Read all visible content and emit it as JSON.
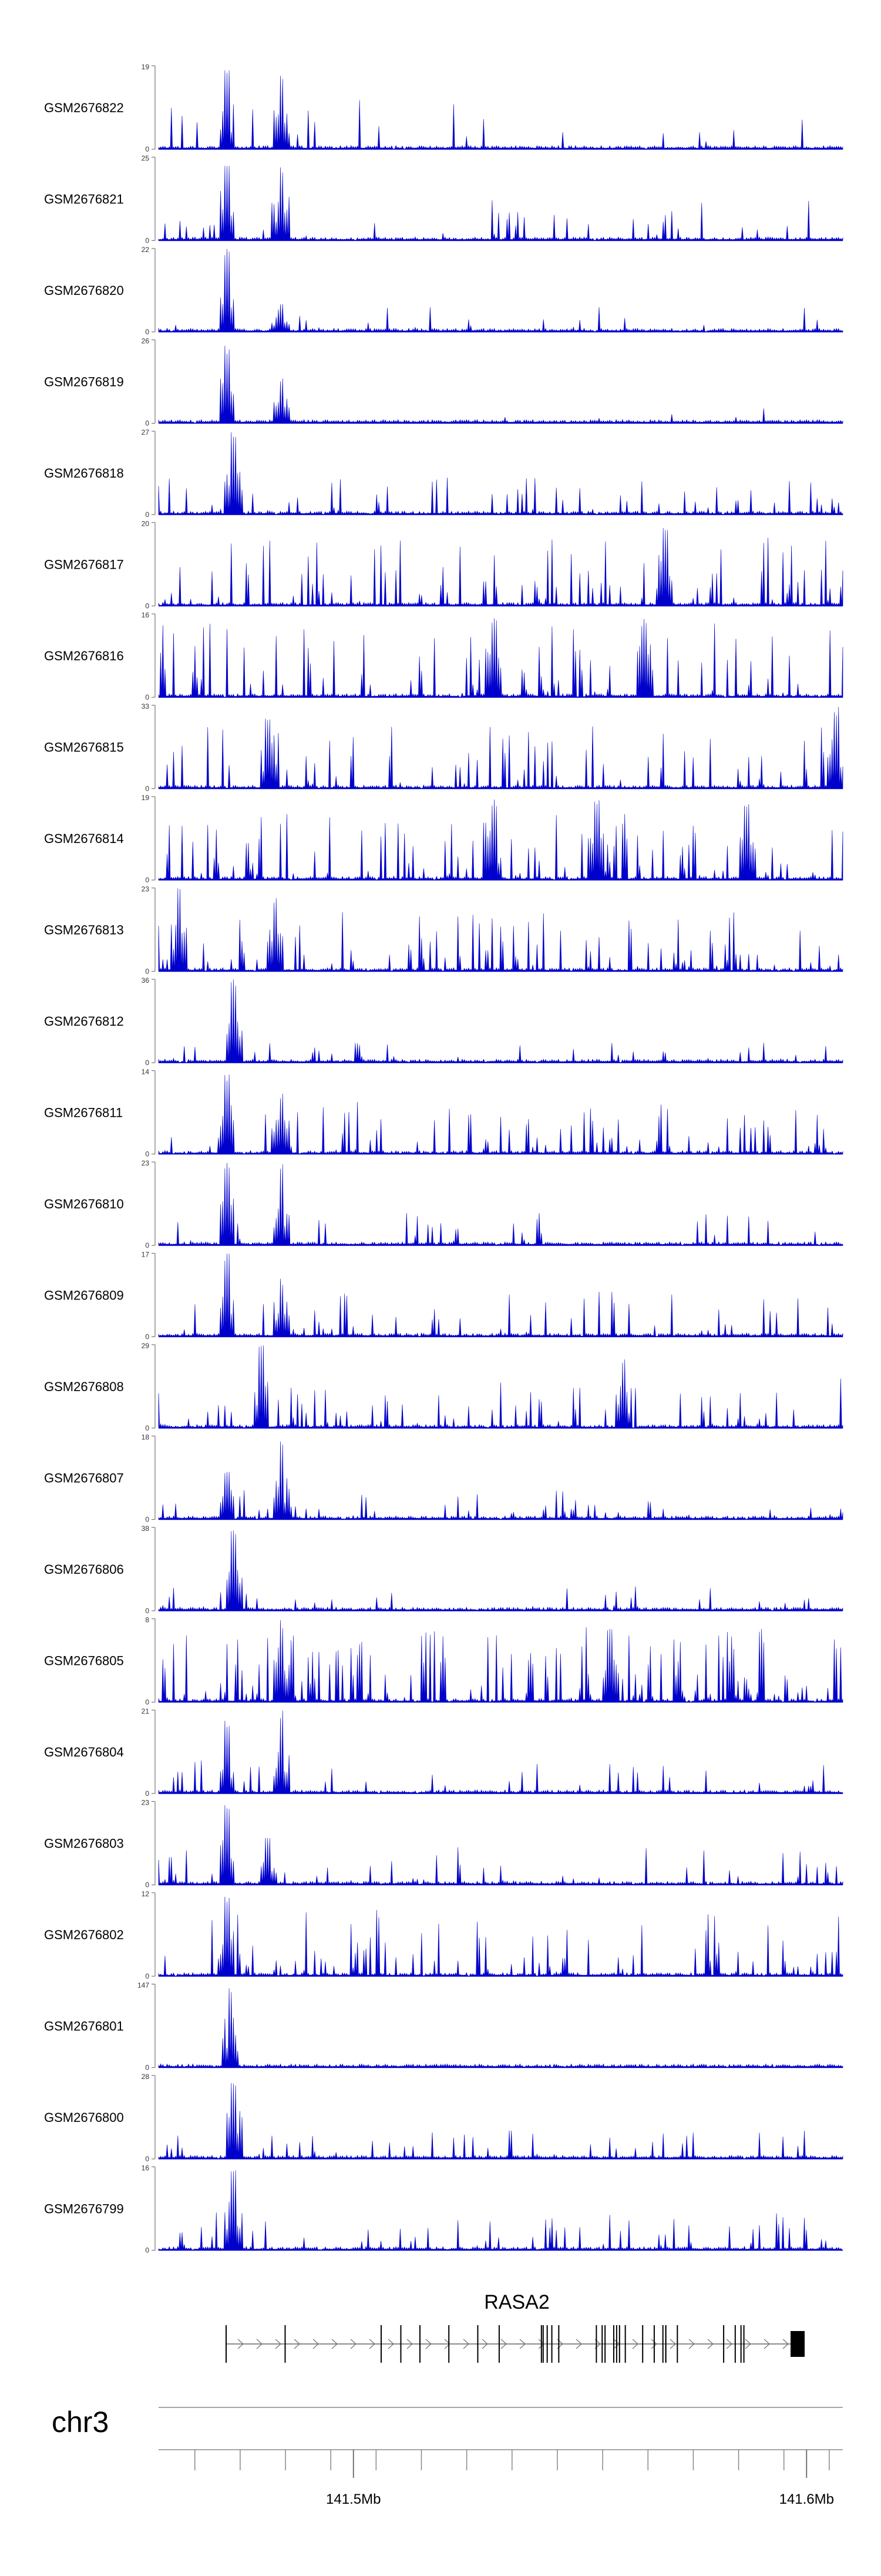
{
  "chart_data": {
    "type": "area",
    "track_color": "#0000cc",
    "gene_color": "#000000",
    "axis_color": "#777777",
    "tracks": [
      {
        "name": "GSM2676822",
        "ymax": 19,
        "peaks": [
          [
            0.1,
            1.0
          ],
          [
            0.18,
            0.95
          ]
        ],
        "density": 0.08,
        "spread": 0.6
      },
      {
        "name": "GSM2676821",
        "ymax": 25,
        "peaks": [
          [
            0.1,
            1.0
          ],
          [
            0.18,
            0.9
          ]
        ],
        "density": 0.12,
        "spread": 0.5
      },
      {
        "name": "GSM2676820",
        "ymax": 22,
        "peaks": [
          [
            0.1,
            1.0
          ],
          [
            0.18,
            0.35
          ]
        ],
        "density": 0.08,
        "spread": 0.3
      },
      {
        "name": "GSM2676819",
        "ymax": 26,
        "peaks": [
          [
            0.1,
            0.95
          ],
          [
            0.18,
            0.55
          ]
        ],
        "density": 0.06,
        "spread": 0.3
      },
      {
        "name": "GSM2676818",
        "ymax": 27,
        "peaks": [
          [
            0.11,
            1.0
          ]
        ],
        "density": 0.18,
        "spread": 0.45
      },
      {
        "name": "GSM2676817",
        "ymax": 20,
        "peaks": [
          [
            0.74,
            1.0
          ]
        ],
        "density": 0.28,
        "spread": 0.85
      },
      {
        "name": "GSM2676816",
        "ymax": 16,
        "peaks": [
          [
            0.49,
            1.0
          ],
          [
            0.71,
            0.95
          ]
        ],
        "density": 0.3,
        "spread": 0.9
      },
      {
        "name": "GSM2676815",
        "ymax": 33,
        "peaks": [
          [
            0.16,
            0.85
          ],
          [
            0.99,
            1.0
          ]
        ],
        "density": 0.22,
        "spread": 0.75
      },
      {
        "name": "GSM2676814",
        "ymax": 19,
        "peaks": [
          [
            0.49,
            1.0
          ],
          [
            0.64,
            1.0
          ],
          [
            0.86,
            0.95
          ]
        ],
        "density": 0.3,
        "spread": 0.8
      },
      {
        "name": "GSM2676813",
        "ymax": 23,
        "peaks": [
          [
            0.03,
            1.0
          ],
          [
            0.17,
            0.9
          ]
        ],
        "density": 0.3,
        "spread": 0.75
      },
      {
        "name": "GSM2676812",
        "ymax": 36,
        "peaks": [
          [
            0.11,
            1.0
          ]
        ],
        "density": 0.12,
        "spread": 0.25
      },
      {
        "name": "GSM2676811",
        "ymax": 14,
        "peaks": [
          [
            0.1,
            1.0
          ],
          [
            0.18,
            0.75
          ]
        ],
        "density": 0.28,
        "spread": 0.65
      },
      {
        "name": "GSM2676810",
        "ymax": 23,
        "peaks": [
          [
            0.1,
            1.0
          ],
          [
            0.18,
            1.0
          ]
        ],
        "density": 0.14,
        "spread": 0.4
      },
      {
        "name": "GSM2676809",
        "ymax": 17,
        "peaks": [
          [
            0.1,
            1.0
          ],
          [
            0.18,
            0.7
          ]
        ],
        "density": 0.2,
        "spread": 0.55
      },
      {
        "name": "GSM2676808",
        "ymax": 29,
        "peaks": [
          [
            0.15,
            1.0
          ],
          [
            0.68,
            0.85
          ]
        ],
        "density": 0.22,
        "spread": 0.6
      },
      {
        "name": "GSM2676807",
        "ymax": 18,
        "peaks": [
          [
            0.1,
            0.6
          ],
          [
            0.18,
            1.0
          ]
        ],
        "density": 0.18,
        "spread": 0.35
      },
      {
        "name": "GSM2676806",
        "ymax": 38,
        "peaks": [
          [
            0.11,
            1.0
          ]
        ],
        "density": 0.14,
        "spread": 0.3
      },
      {
        "name": "GSM2676805",
        "ymax": 8,
        "peaks": [
          [
            0.18,
            1.0
          ],
          [
            0.66,
            0.95
          ]
        ],
        "density": 0.5,
        "spread": 0.9
      },
      {
        "name": "GSM2676804",
        "ymax": 21,
        "peaks": [
          [
            0.1,
            0.9
          ],
          [
            0.18,
            1.0
          ]
        ],
        "density": 0.16,
        "spread": 0.4
      },
      {
        "name": "GSM2676803",
        "ymax": 23,
        "peaks": [
          [
            0.1,
            1.0
          ],
          [
            0.16,
            0.6
          ]
        ],
        "density": 0.2,
        "spread": 0.45
      },
      {
        "name": "GSM2676802",
        "ymax": 12,
        "peaks": [
          [
            0.1,
            1.0
          ]
        ],
        "density": 0.3,
        "spread": 0.8
      },
      {
        "name": "GSM2676801",
        "ymax": 147,
        "peaks": [
          [
            0.105,
            1.0
          ]
        ],
        "density": 0.04,
        "spread": 0.03
      },
      {
        "name": "GSM2676800",
        "ymax": 28,
        "peaks": [
          [
            0.11,
            1.0
          ]
        ],
        "density": 0.15,
        "spread": 0.35
      },
      {
        "name": "GSM2676799",
        "ymax": 16,
        "peaks": [
          [
            0.11,
            1.0
          ]
        ],
        "density": 0.2,
        "spread": 0.5
      }
    ],
    "y_min_label": "0",
    "gene": {
      "name": "RASA2",
      "strand": "+",
      "exons": [
        0.102,
        0.268,
        0.302,
        0.335,
        0.385,
        0.435,
        0.472,
        0.545,
        0.548,
        0.555,
        0.563,
        0.575,
        0.64,
        0.65,
        0.655,
        0.67,
        0.675,
        0.68,
        0.69,
        0.72,
        0.74,
        0.755,
        0.76,
        0.76,
        0.78,
        0.86,
        0.88,
        0.89,
        0.895
      ],
      "last_exon_label": ""
    },
    "chromosome": "chr3",
    "x_range_mb": [
      141.457,
      141.608
    ],
    "ticks_mb": [
      141.465,
      141.475,
      141.485,
      141.495,
      141.505,
      141.515,
      141.525,
      141.535,
      141.545,
      141.555,
      141.565,
      141.575,
      141.585,
      141.595,
      141.605
    ],
    "major_ticks": [
      {
        "mb": 141.5,
        "label": "141.5Mb"
      },
      {
        "mb": 141.6,
        "label": "141.6Mb"
      }
    ]
  }
}
